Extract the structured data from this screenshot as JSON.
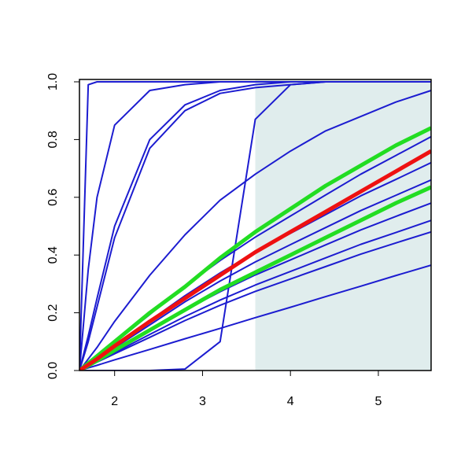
{
  "chart_data": {
    "type": "line",
    "x": [
      1.6,
      1.7,
      1.8,
      2.0,
      2.4,
      2.8,
      3.2,
      3.6,
      4.0,
      4.4,
      4.8,
      5.2,
      5.6
    ],
    "xlim": [
      1.6,
      5.6
    ],
    "ylim": [
      0,
      1
    ],
    "xticks": [
      2,
      3,
      4,
      5
    ],
    "yticks": [
      {
        "value": 0,
        "label": "0.0"
      },
      0.2,
      0.4,
      0.6,
      0.8,
      {
        "value": 1,
        "label": "1.0"
      }
    ],
    "shade": [
      3.6,
      5.6
    ],
    "shade_color": "#e0eded",
    "series": [
      {
        "color": "#1c1cd0",
        "values": [
          0,
          0.99,
          1,
          1,
          1,
          1,
          1,
          1,
          1,
          1,
          1,
          1,
          1
        ]
      },
      {
        "color": "#1c1cd0",
        "values": [
          0,
          0.35,
          0.6,
          0.85,
          0.97,
          0.99,
          1,
          1,
          1,
          1,
          1,
          1,
          1
        ]
      },
      {
        "color": "#1c1cd0",
        "values": [
          0,
          0.12,
          0.25,
          0.5,
          0.8,
          0.92,
          0.97,
          0.99,
          1,
          1,
          1,
          1,
          1
        ]
      },
      {
        "color": "#1c1cd0",
        "values": [
          0,
          0.1,
          0.22,
          0.46,
          0.77,
          0.9,
          0.96,
          0.98,
          0.99,
          1,
          1,
          1,
          1
        ]
      },
      {
        "color": "#1c1cd0",
        "values": [
          0,
          0.04,
          0.08,
          0.17,
          0.33,
          0.47,
          0.59,
          0.68,
          0.76,
          0.83,
          0.88,
          0.93,
          0.97
        ]
      },
      {
        "color": "#1c1cd0",
        "values": [
          0,
          0,
          0,
          0,
          0,
          0.005,
          0.1,
          0.87,
          0.99,
          1,
          1,
          1,
          1
        ]
      },
      {
        "color": "#1c1cd0",
        "values": [
          0,
          0.024,
          0.049,
          0.097,
          0.194,
          0.292,
          0.381,
          0.462,
          0.535,
          0.608,
          0.68,
          0.745,
          0.81
        ]
      },
      {
        "color": "#1c1cd0",
        "values": [
          0,
          0.022,
          0.043,
          0.086,
          0.173,
          0.259,
          0.338,
          0.41,
          0.475,
          0.54,
          0.605,
          0.662,
          0.72
        ]
      },
      {
        "color": "#1c1cd0",
        "values": [
          0,
          0.02,
          0.04,
          0.079,
          0.158,
          0.238,
          0.31,
          0.376,
          0.436,
          0.495,
          0.554,
          0.607,
          0.66
        ]
      },
      {
        "color": "#1c1cd0",
        "values": [
          0,
          0.017,
          0.035,
          0.07,
          0.139,
          0.209,
          0.273,
          0.331,
          0.383,
          0.435,
          0.487,
          0.534,
          0.58
        ]
      },
      {
        "color": "#1c1cd0",
        "values": [
          0,
          0.016,
          0.031,
          0.062,
          0.125,
          0.187,
          0.244,
          0.296,
          0.343,
          0.39,
          0.437,
          0.478,
          0.52
        ]
      },
      {
        "color": "#1c1cd0",
        "values": [
          0,
          0.014,
          0.029,
          0.058,
          0.115,
          0.173,
          0.226,
          0.274,
          0.317,
          0.36,
          0.403,
          0.442,
          0.48
        ]
      },
      {
        "color": "#1c1cd0",
        "values": [
          0,
          0.009,
          0.018,
          0.037,
          0.073,
          0.11,
          0.146,
          0.183,
          0.219,
          0.256,
          0.292,
          0.329,
          0.365
        ]
      },
      {
        "color": "#22dd22",
        "values": [
          0,
          0.025,
          0.05,
          0.1,
          0.2,
          0.29,
          0.39,
          0.48,
          0.56,
          0.64,
          0.71,
          0.78,
          0.84
        ]
      },
      {
        "color": "#22dd22",
        "values": [
          0,
          0.017,
          0.034,
          0.07,
          0.14,
          0.21,
          0.28,
          0.34,
          0.4,
          0.46,
          0.52,
          0.58,
          0.635
        ]
      },
      {
        "color": "#ee1111",
        "values": [
          0,
          0.02,
          0.04,
          0.085,
          0.17,
          0.25,
          0.33,
          0.41,
          0.48,
          0.55,
          0.62,
          0.69,
          0.76
        ]
      }
    ]
  }
}
